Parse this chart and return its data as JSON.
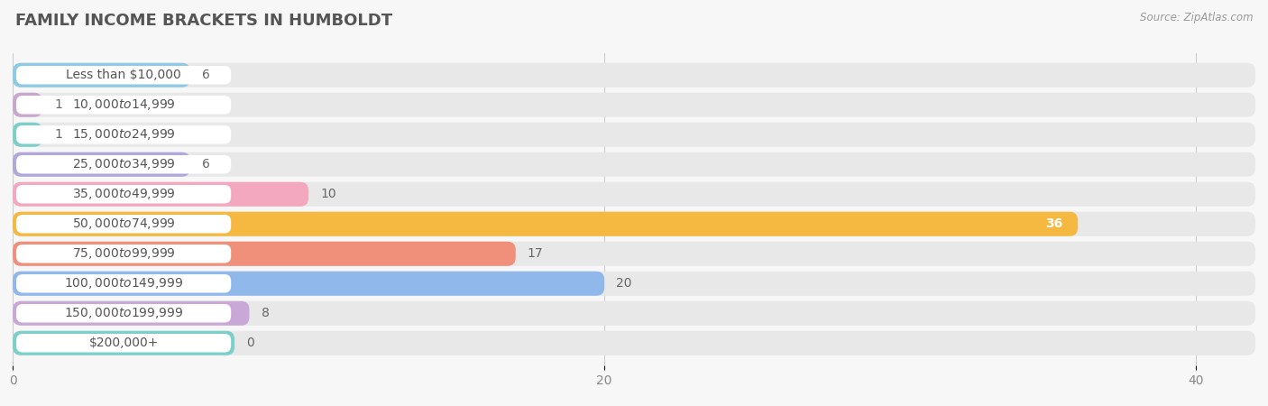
{
  "title": "FAMILY INCOME BRACKETS IN HUMBOLDT",
  "source": "Source: ZipAtlas.com",
  "categories": [
    "Less than $10,000",
    "$10,000 to $14,999",
    "$15,000 to $24,999",
    "$25,000 to $34,999",
    "$35,000 to $49,999",
    "$50,000 to $74,999",
    "$75,000 to $99,999",
    "$100,000 to $149,999",
    "$150,000 to $199,999",
    "$200,000+"
  ],
  "values": [
    6,
    1,
    1,
    6,
    10,
    36,
    17,
    20,
    8,
    0
  ],
  "bar_colors": [
    "#8ecae6",
    "#c9a8d0",
    "#7dcfc9",
    "#b0a8d8",
    "#f4a8c0",
    "#f5b942",
    "#f0907a",
    "#90b8ea",
    "#c9a8d8",
    "#7dcfc9"
  ],
  "background_color": "#f7f7f7",
  "row_bg_color": "#e8e8e8",
  "label_bg_color": "#ffffff",
  "xlim": [
    0,
    42
  ],
  "xticks": [
    0,
    20,
    40
  ],
  "title_fontsize": 13,
  "label_fontsize": 10,
  "value_fontsize": 10
}
